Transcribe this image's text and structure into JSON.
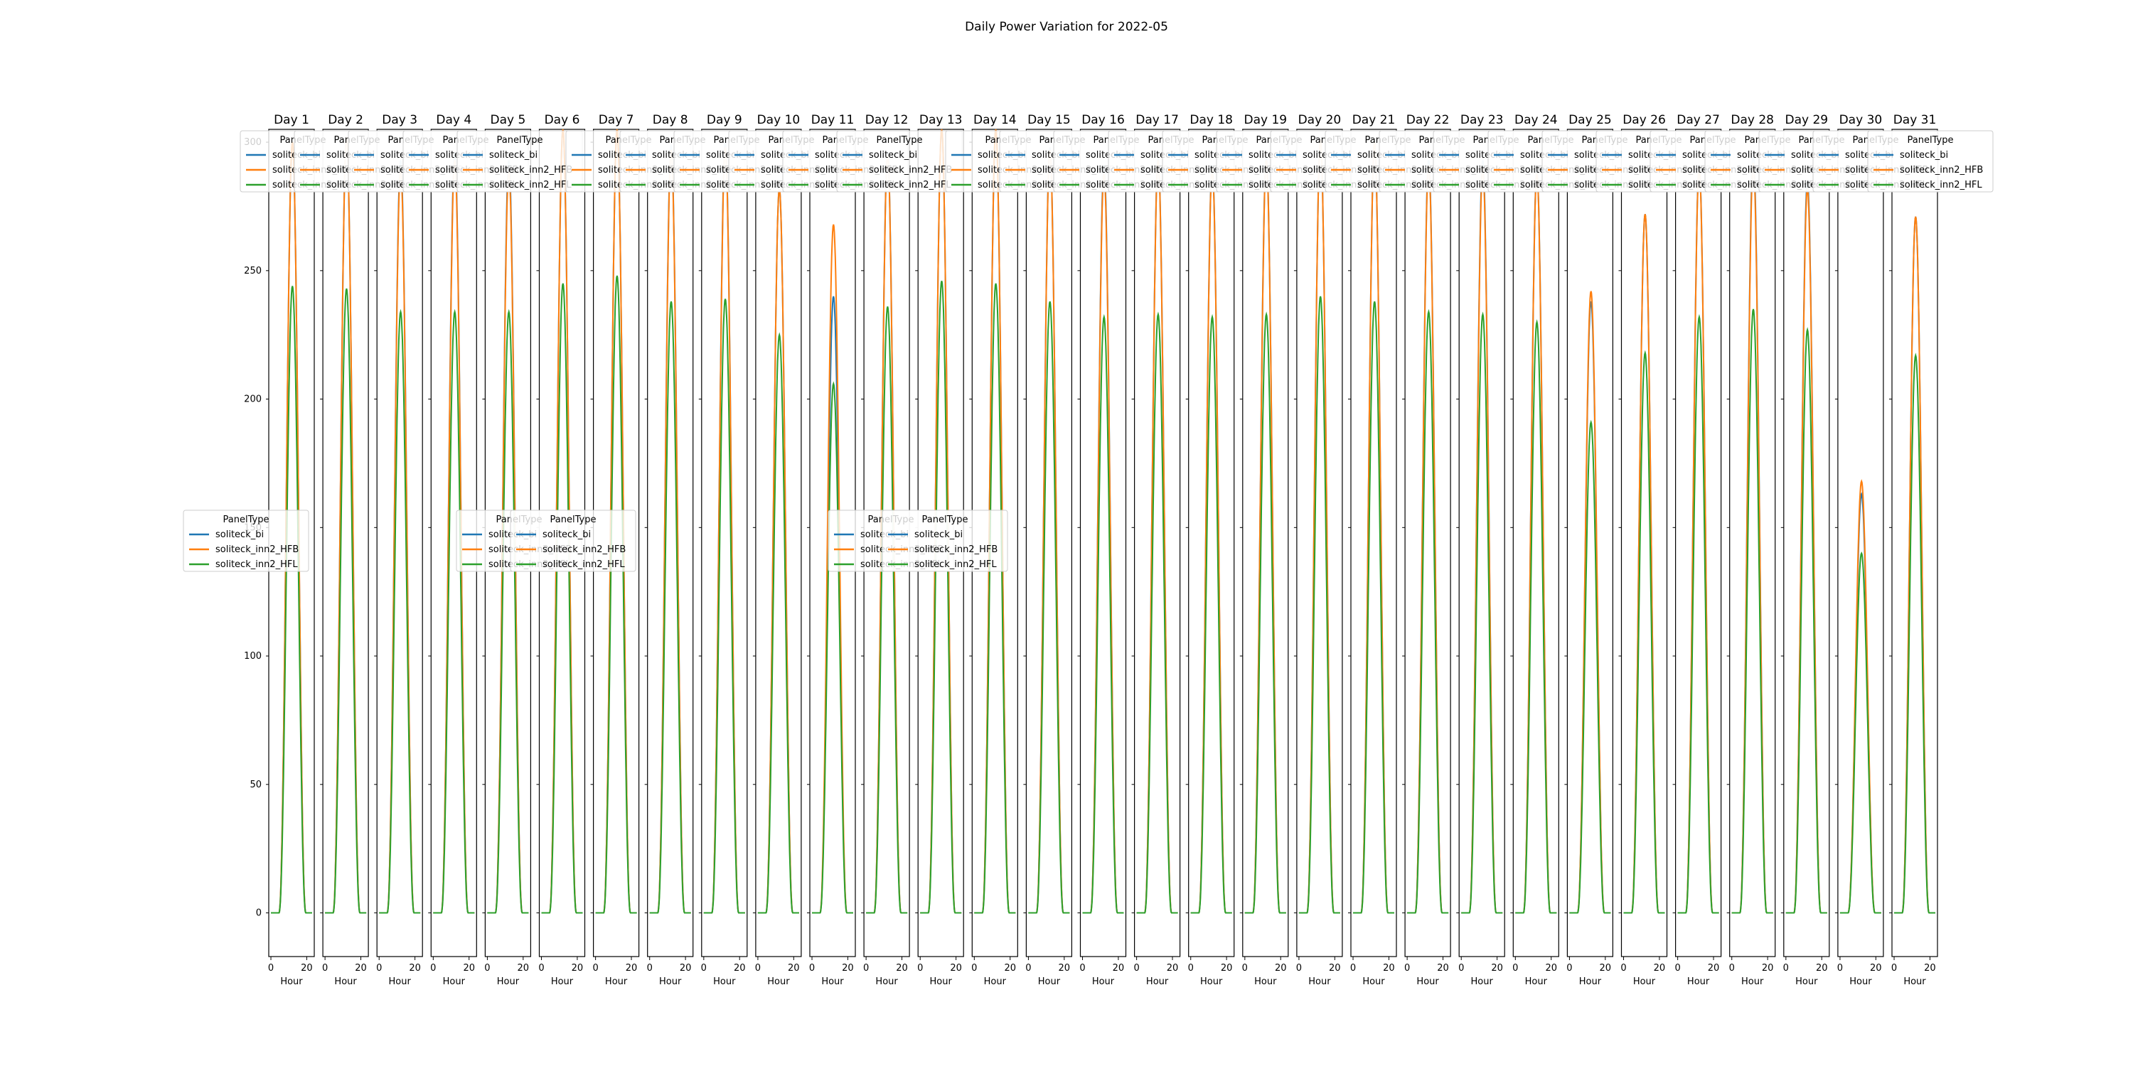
{
  "chart_data": {
    "type": "line",
    "title": "Daily Power Variation for 2022-05",
    "xlabel": "Hour",
    "ylabel": "",
    "ylim": [
      -17,
      305
    ],
    "xlim": [
      -1.2,
      24.2
    ],
    "yticks": [
      0,
      50,
      100,
      150,
      200,
      250,
      300
    ],
    "xticks": [
      0,
      20
    ],
    "legend_title": "PanelType",
    "series": [
      {
        "name": "soliteck_bi",
        "color": "#1f77b4"
      },
      {
        "name": "soliteck_inn2_HFB",
        "color": "#ff7f0e"
      },
      {
        "name": "soliteck_inn2_HFL",
        "color": "#2ca02c"
      }
    ],
    "panels": [
      {
        "title": "Day 1",
        "peak": {
          "bi": 300,
          "hfb": 300,
          "hfl": 244
        }
      },
      {
        "title": "Day 2",
        "peak": {
          "bi": 302,
          "hfb": 302,
          "hfl": 243
        }
      },
      {
        "title": "Day 3",
        "peak": {
          "bi": 293,
          "hfb": 290,
          "hfl": 234
        }
      },
      {
        "title": "Day 4",
        "peak": {
          "bi": 296,
          "hfb": 293,
          "hfl": 234
        }
      },
      {
        "title": "Day 5",
        "peak": {
          "bi": 293,
          "hfb": 289,
          "hfl": 234
        }
      },
      {
        "title": "Day 6",
        "peak": {
          "bi": 305,
          "hfb": 305,
          "hfl": 245
        }
      },
      {
        "title": "Day 7",
        "peak": {
          "bi": 305,
          "hfb": 305,
          "hfl": 248
        }
      },
      {
        "title": "Day 8",
        "peak": {
          "bi": 299,
          "hfb": 297,
          "hfl": 238
        }
      },
      {
        "title": "Day 9",
        "peak": {
          "bi": 300,
          "hfb": 298,
          "hfl": 239
        }
      },
      {
        "title": "Day 10",
        "peak": {
          "bi": 282,
          "hfb": 282,
          "hfl": 225
        }
      },
      {
        "title": "Day 11",
        "peak": {
          "bi": 240,
          "hfb": 268,
          "hfl": 206
        }
      },
      {
        "title": "Day 12",
        "peak": {
          "bi": 296,
          "hfb": 295,
          "hfl": 236
        }
      },
      {
        "title": "Day 13",
        "peak": {
          "bi": 305,
          "hfb": 305,
          "hfl": 246
        }
      },
      {
        "title": "Day 14",
        "peak": {
          "bi": 305,
          "hfb": 305,
          "hfl": 245
        }
      },
      {
        "title": "Day 15",
        "peak": {
          "bi": 298,
          "hfb": 297,
          "hfl": 238
        }
      },
      {
        "title": "Day 16",
        "peak": {
          "bi": 291,
          "hfb": 288,
          "hfl": 232
        }
      },
      {
        "title": "Day 17",
        "peak": {
          "bi": 294,
          "hfb": 293,
          "hfl": 233
        }
      },
      {
        "title": "Day 18",
        "peak": {
          "bi": 291,
          "hfb": 290,
          "hfl": 232
        }
      },
      {
        "title": "Day 19",
        "peak": {
          "bi": 294,
          "hfb": 293,
          "hfl": 233
        }
      },
      {
        "title": "Day 20",
        "peak": {
          "bi": 301,
          "hfb": 301,
          "hfl": 240
        }
      },
      {
        "title": "Day 21",
        "peak": {
          "bi": 300,
          "hfb": 300,
          "hfl": 238
        }
      },
      {
        "title": "Day 22",
        "peak": {
          "bi": 293,
          "hfb": 291,
          "hfl": 234
        }
      },
      {
        "title": "Day 23",
        "peak": {
          "bi": 293,
          "hfb": 290,
          "hfl": 233
        }
      },
      {
        "title": "Day 24",
        "peak": {
          "bi": 289,
          "hfb": 288,
          "hfl": 230
        }
      },
      {
        "title": "Day 25",
        "peak": {
          "bi": 238,
          "hfb": 242,
          "hfl": 191
        }
      },
      {
        "title": "Day 26",
        "peak": {
          "bi": 272,
          "hfb": 272,
          "hfl": 218
        }
      },
      {
        "title": "Day 27",
        "peak": {
          "bi": 291,
          "hfb": 290,
          "hfl": 232
        }
      },
      {
        "title": "Day 28",
        "peak": {
          "bi": 296,
          "hfb": 292,
          "hfl": 235
        }
      },
      {
        "title": "Day 29",
        "peak": {
          "bi": 285,
          "hfb": 282,
          "hfl": 227
        }
      },
      {
        "title": "Day 30",
        "peak": {
          "bi": 163,
          "hfb": 168,
          "hfl": 140
        }
      },
      {
        "title": "Day 31",
        "peak": {
          "bi": 271,
          "hfb": 271,
          "hfl": 217
        }
      }
    ]
  }
}
